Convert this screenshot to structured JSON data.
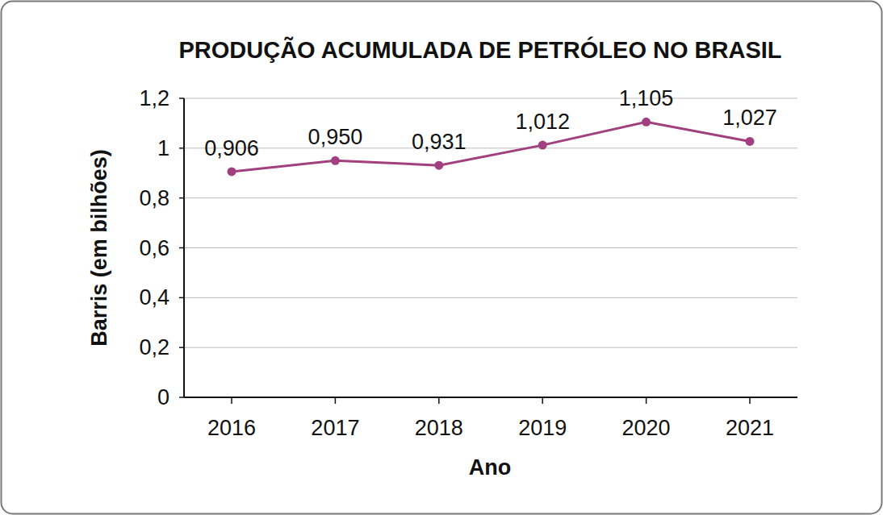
{
  "chart_data": {
    "type": "line",
    "title": "PRODUÇÃO ACUMULADA DE PETRÓLEO NO BRASIL",
    "x_label": "Ano",
    "y_label": "Barris (em bilhões)",
    "categories": [
      "2016",
      "2017",
      "2018",
      "2019",
      "2020",
      "2021"
    ],
    "values": [
      0.906,
      0.95,
      0.931,
      1.012,
      1.105,
      1.027
    ],
    "value_labels": [
      "0,906",
      "0,950",
      "0,931",
      "1,012",
      "1,105",
      "1,027"
    ],
    "color": "#a2407f",
    "marker": "circle",
    "line_style": "solid",
    "ylim": [
      0,
      1.2
    ],
    "yticks": [
      0,
      {
        "value": 0.2,
        "label": "0,2"
      },
      {
        "value": 0.4,
        "label": "0,4"
      },
      {
        "value": 0.6,
        "label": "0,6"
      },
      {
        "value": 0.8,
        "label": "0,8"
      },
      1,
      {
        "value": 1.2,
        "label": "1,2"
      }
    ],
    "grid": true,
    "data_labels": true
  }
}
